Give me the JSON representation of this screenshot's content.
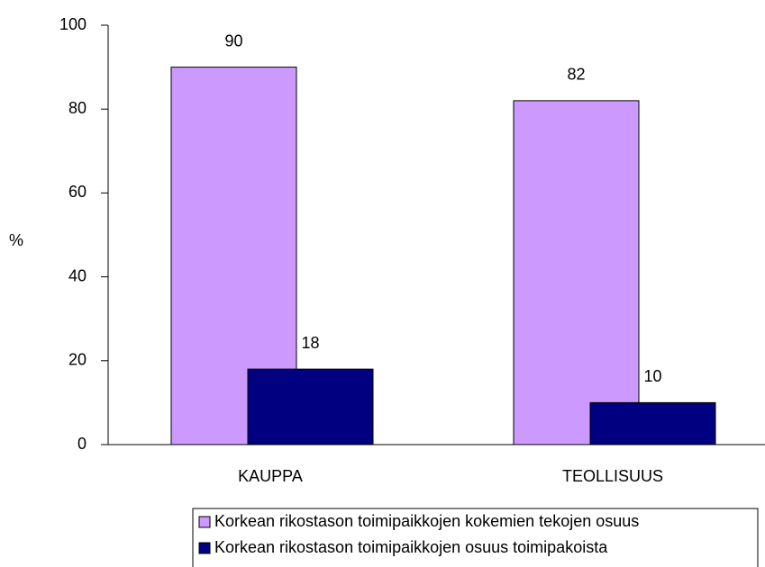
{
  "chart_data": {
    "type": "bar",
    "ylabel": "%",
    "categories": [
      "KAUPPA",
      "TEOLLISUUS"
    ],
    "series": [
      {
        "name": "Korkean rikostason toimipaikkojen kokemien tekojen osuus",
        "color": "#cc99ff",
        "values": [
          90,
          82
        ]
      },
      {
        "name": "Korkean rikostason toimipaikkojen osuus toimipakoista",
        "color": "#000080",
        "values": [
          18,
          10
        ]
      }
    ],
    "ylim": [
      0,
      100
    ],
    "yticks": [
      0,
      20,
      40,
      60,
      80,
      100
    ],
    "grid": false,
    "legend": "bottom"
  }
}
